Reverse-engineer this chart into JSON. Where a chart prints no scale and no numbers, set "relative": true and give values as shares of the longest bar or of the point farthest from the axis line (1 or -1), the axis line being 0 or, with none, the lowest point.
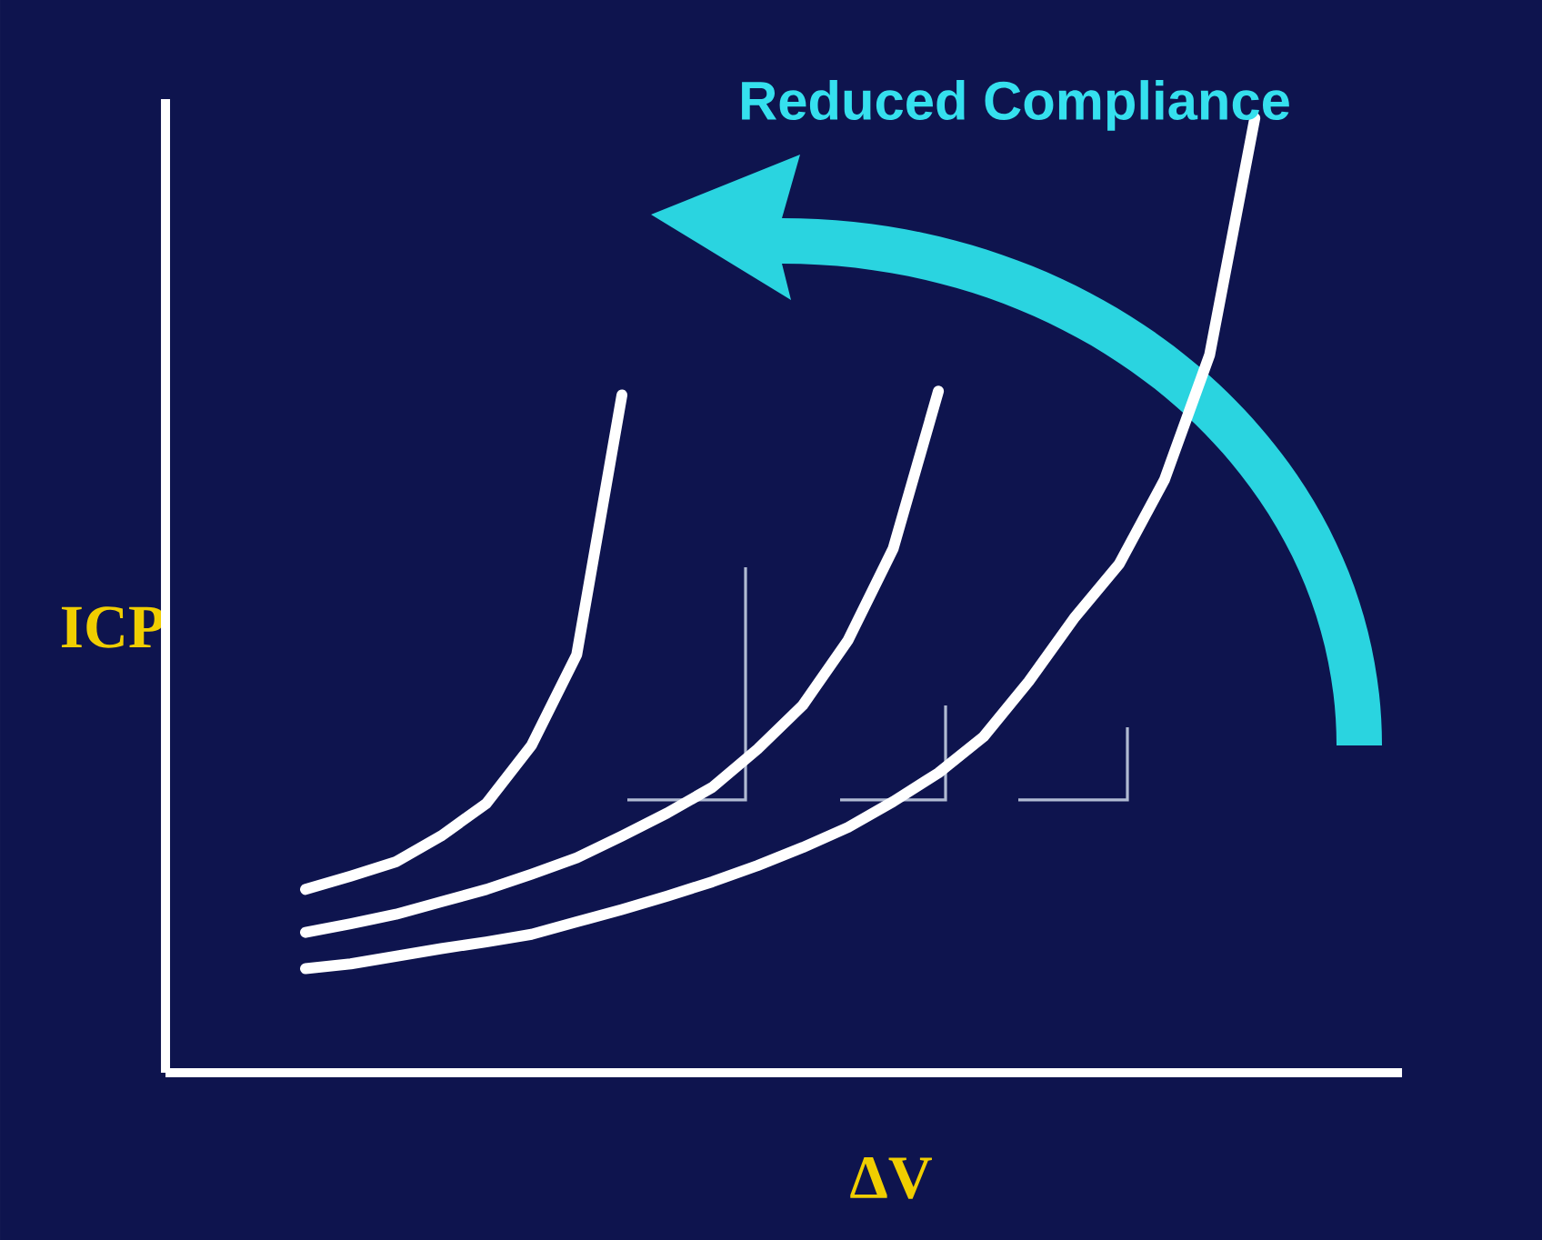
{
  "chart_data": {
    "type": "line",
    "relative": true,
    "xlabel": "ΔV",
    "ylabel": "ICP",
    "annotations": [
      "Reduced Compliance"
    ],
    "categories": [
      null,
      null,
      null,
      null,
      null,
      null,
      null,
      null,
      null,
      null,
      null,
      null,
      null,
      null,
      null,
      null,
      null,
      null,
      null,
      null,
      null,
      null
    ],
    "series": [
      {
        "color": "#ffffff",
        "values": [
          0.192,
          0.206,
          0.221,
          0.248,
          0.282,
          0.343,
          0.438,
          0.71,
          null,
          null,
          null,
          null,
          null,
          null,
          null,
          null,
          null,
          null,
          null,
          null,
          null,
          null
        ]
      },
      {
        "color": "#ffffff",
        "values": [
          0.147,
          0.156,
          0.166,
          0.179,
          0.192,
          0.208,
          0.225,
          0.248,
          0.272,
          0.299,
          0.339,
          0.385,
          0.453,
          0.549,
          0.714,
          null,
          null,
          null,
          null,
          null,
          null,
          null
        ]
      },
      {
        "color": "#ffffff",
        "values": [
          0.109,
          0.114,
          0.122,
          0.13,
          0.137,
          0.145,
          0.158,
          0.171,
          0.185,
          0.2,
          0.217,
          0.236,
          0.257,
          0.284,
          0.314,
          0.352,
          0.41,
          0.476,
          0.533,
          0.621,
          0.752,
          1.0
        ]
      }
    ]
  }
}
